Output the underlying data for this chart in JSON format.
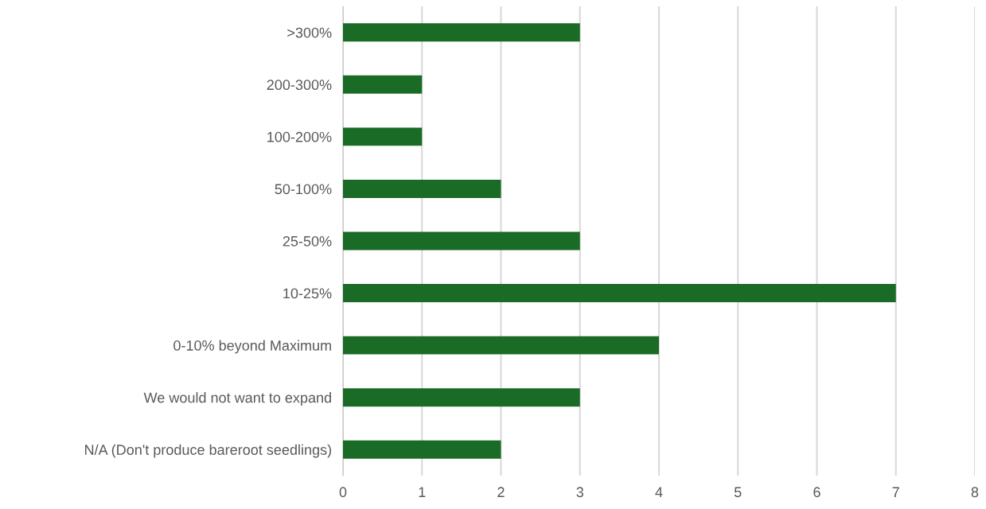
{
  "chart_data": {
    "type": "bar",
    "orientation": "horizontal",
    "categories": [
      ">300%",
      "200-300%",
      "100-200%",
      "50-100%",
      "25-50%",
      "10-25%",
      "0-10% beyond Maximum",
      "We would not want to expand",
      "N/A (Don't produce bareroot seedlings)"
    ],
    "values": [
      3,
      1,
      1,
      2,
      3,
      7,
      4,
      3,
      2
    ],
    "color": "#1a6b26",
    "xlim": [
      0,
      8
    ],
    "xticks": [
      0,
      1,
      2,
      3,
      4,
      5,
      6,
      7,
      8
    ],
    "grid": "x",
    "legend": false
  }
}
